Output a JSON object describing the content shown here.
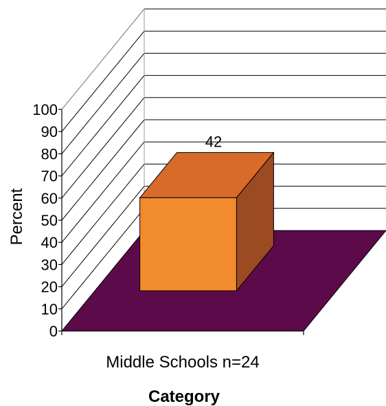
{
  "chart_data": {
    "type": "bar",
    "three_d": true,
    "categories": [
      "Middle Schools n=24"
    ],
    "values": [
      42
    ],
    "data_labels": [
      "42"
    ],
    "xlabel": "Category",
    "ylabel": "Percent",
    "ylim": [
      0,
      100
    ],
    "yticks": [
      "0",
      "10",
      "20",
      "30",
      "40",
      "50",
      "60",
      "70",
      "80",
      "90",
      "100"
    ],
    "grid": true,
    "legend": "none",
    "colors": {
      "bar_front": "#f28a2e",
      "bar_top": "#d86a2a",
      "bar_side": "#9c4a22",
      "floor": "#5c0a4a",
      "gridline": "#000000"
    }
  }
}
